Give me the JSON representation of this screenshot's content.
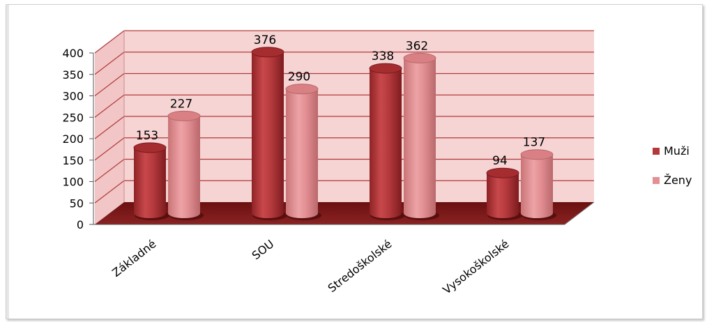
{
  "chart_data": {
    "type": "bar",
    "style": "3d-cylinder",
    "categories": [
      "Základné",
      "SOU",
      "Stredoškolské",
      "Vysokoškolské"
    ],
    "series": [
      {
        "name": "Muži",
        "values": [
          153,
          376,
          338,
          94
        ],
        "color": "#b5373a"
      },
      {
        "name": "Ženy",
        "values": [
          227,
          290,
          362,
          137
        ],
        "color": "#e38f93"
      }
    ],
    "yticks": [
      "0",
      "50",
      "100",
      "150",
      "200",
      "250",
      "300",
      "350",
      "400"
    ],
    "ylim": [
      0,
      400
    ],
    "grid": true,
    "legend": "right",
    "colors": {
      "wall": "#f6d4d4",
      "gridline": "#b03a3a",
      "floor": "#7a1818"
    }
  }
}
